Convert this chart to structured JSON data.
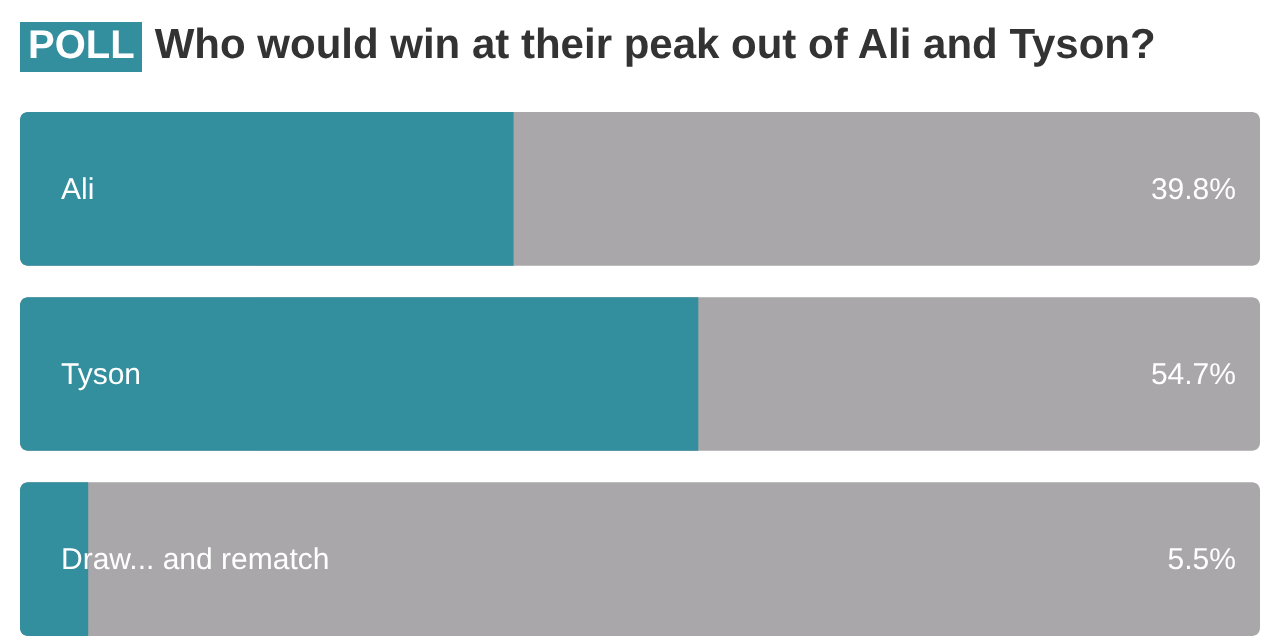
{
  "chart_data": {
    "type": "bar",
    "orientation": "horizontal",
    "title": "Who would win at their peak out of Ali and Tyson?",
    "annotations": [
      "POLL"
    ],
    "categories": [
      "Ali",
      "Tyson",
      "Draw... and rematch"
    ],
    "values": [
      39.8,
      54.7,
      5.5
    ],
    "value_labels": [
      "39.8%",
      "54.7%",
      "5.5%"
    ],
    "color": "#338e9e",
    "xlim": [
      0,
      100
    ],
    "tick_labels": "y"
  }
}
